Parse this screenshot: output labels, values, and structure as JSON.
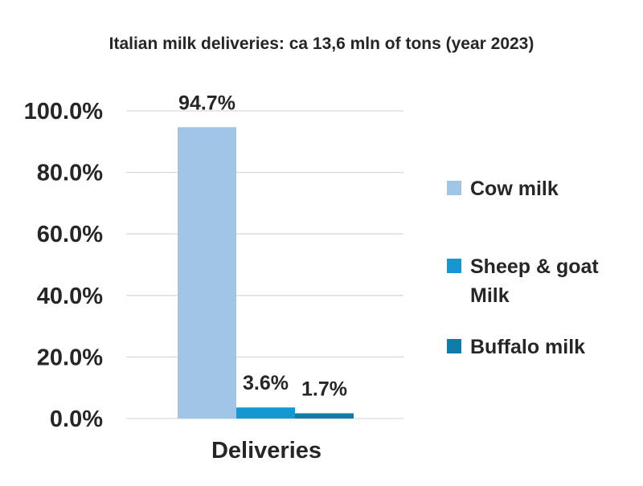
{
  "chart_data": {
    "type": "bar",
    "title": "Italian milk deliveries: ca 13,6 mln of tons (year 2023)",
    "categories": [
      "Deliveries"
    ],
    "series": [
      {
        "name": "Cow milk",
        "legend_lines": [
          "Cow milk"
        ],
        "values": [
          94.7
        ],
        "label": "94.7%",
        "color": "#a0c5e6"
      },
      {
        "name": "Sheep & goat Milk",
        "legend_lines": [
          "Sheep & goat",
          "Milk"
        ],
        "values": [
          3.6
        ],
        "label": "3.6%",
        "color": "#1797d2"
      },
      {
        "name": "Buffalo milk",
        "legend_lines": [
          "Buffalo milk"
        ],
        "values": [
          1.7
        ],
        "label": "1.7%",
        "color": "#0f7ca8"
      }
    ],
    "ylim": [
      0,
      100
    ],
    "yticks": [
      0,
      20,
      40,
      60,
      80,
      100
    ],
    "ytick_labels": [
      "0.0%",
      "20.0%",
      "40.0%",
      "60.0%",
      "80.0%",
      "100.0%"
    ],
    "grid": true,
    "legend_position": "right"
  }
}
